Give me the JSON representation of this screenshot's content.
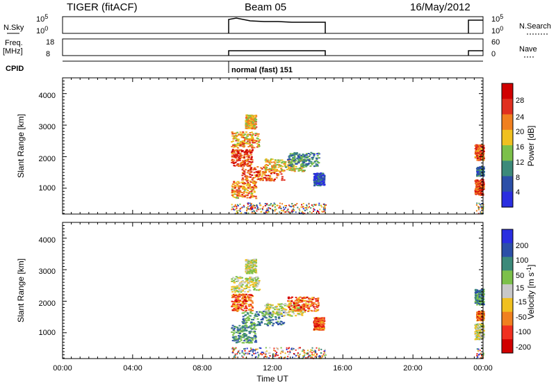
{
  "header": {
    "radar": "TIGER (fitACF)",
    "beam": "Beam 05",
    "date": "16/May/2012"
  },
  "strip": {
    "nsky_label": "N.Sky",
    "nsky_ticks": [
      "10^5",
      "10^0"
    ],
    "nsearch_label": "N.Search",
    "nsearch_ticks": [
      "10^5",
      "10^0"
    ],
    "freq_label": [
      "Freq.",
      "[MHz]"
    ],
    "freq_ticks": [
      "18",
      "8"
    ],
    "nave_label": "Nave",
    "nave_ticks": [
      "60",
      "0"
    ],
    "cpid_label": "CPID",
    "cpid_value": "normal (fast) 151"
  },
  "colors": {
    "power": [
      "#2a2ee0",
      "#2c4fa8",
      "#3c8a7a",
      "#7cc04a",
      "#f0c020",
      "#f08020",
      "#e03020",
      "#d00000"
    ],
    "velocity": [
      "#d00000",
      "#f03020",
      "#f08020",
      "#f0c020",
      "#c8c8c8",
      "#7cc04a",
      "#3c8a7a",
      "#2c4fa8",
      "#2a2ee0"
    ]
  },
  "chart_data": [
    {
      "type": "heatmap",
      "title": "Power",
      "xlabel": "",
      "ylabel": "Slant Range [km]",
      "colorbar_label": "Power [dB]",
      "colorbar_ticks": [
        "28",
        "24",
        "20",
        "16",
        "12",
        "8",
        "4"
      ],
      "x_ticks": [
        "00:00",
        "04:00",
        "08:00",
        "12:00",
        "16:00",
        "20:00",
        "00:00"
      ],
      "y_ticks": [
        "4000",
        "3000",
        "2000",
        "1000"
      ],
      "xlim": [
        0,
        24
      ],
      "ylim": [
        180,
        4500
      ],
      "data_intervals_ut_hours": [
        [
          9.5,
          15.0
        ],
        [
          23.5,
          24.0
        ]
      ]
    },
    {
      "type": "heatmap",
      "title": "Velocity",
      "xlabel": "Time UT",
      "ylabel": "Slant Range [km]",
      "colorbar_label": "Velocity [m s-1]",
      "colorbar_ticks": [
        "200",
        "100",
        "50",
        "15",
        "-15",
        "-50",
        "-100",
        "-200"
      ],
      "x_ticks": [
        "00:00",
        "04:00",
        "08:00",
        "12:00",
        "16:00",
        "20:00",
        "00:00"
      ],
      "y_ticks": [
        "4000",
        "3000",
        "2000",
        "1000"
      ],
      "xlim": [
        0,
        24
      ],
      "ylim": [
        180,
        4500
      ],
      "data_intervals_ut_hours": [
        [
          9.5,
          15.0
        ],
        [
          23.5,
          24.0
        ]
      ]
    }
  ]
}
